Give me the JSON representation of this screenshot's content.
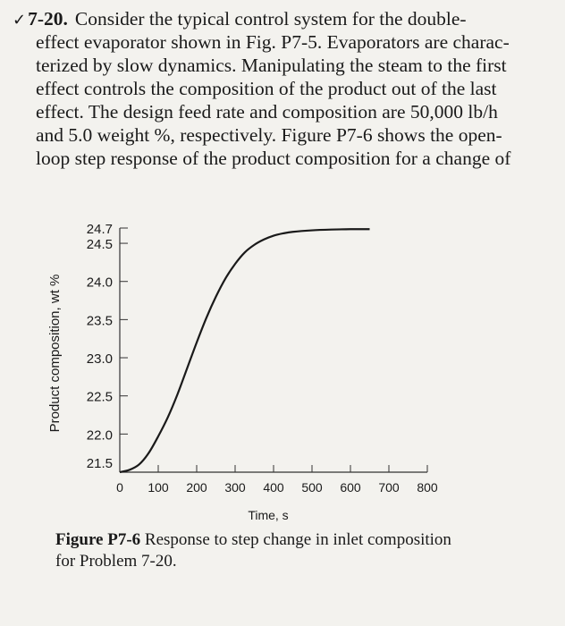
{
  "problem": {
    "check_mark": "✓",
    "number": "7-20.",
    "lines": [
      "Consider the typical control system for the double-",
      "effect evaporator shown in Fig. P7-5. Evaporators are charac-",
      "terized by slow dynamics. Manipulating the steam to the first",
      "effect controls the composition of the product out of the last",
      "effect. The design feed rate and composition are 50,000 lb/h",
      "and 5.0 weight %, respectively. Figure P7-6 shows the open-",
      "loop step response of the product composition for a change of"
    ]
  },
  "chart_data": {
    "type": "line",
    "title": "",
    "xlabel": "Time, s",
    "ylabel": "Product composition, wt %",
    "xlim": [
      0,
      800
    ],
    "ylim": [
      21.5,
      24.7
    ],
    "x_ticks": [
      "0",
      "100",
      "200",
      "300",
      "400",
      "500",
      "600",
      "700",
      "800"
    ],
    "y_ticks": [
      "21.5",
      "22.0",
      "22.5",
      "23.0",
      "23.5",
      "24.0",
      "24.5",
      "24.7"
    ],
    "series": [
      {
        "name": "Product composition",
        "x": [
          0,
          25,
          50,
          75,
          100,
          125,
          150,
          175,
          200,
          225,
          250,
          275,
          300,
          325,
          350,
          375,
          400,
          425,
          450,
          500,
          550,
          600,
          650
        ],
        "y": [
          21.5,
          21.53,
          21.6,
          21.75,
          21.97,
          22.22,
          22.52,
          22.86,
          23.2,
          23.52,
          23.8,
          24.04,
          24.23,
          24.38,
          24.48,
          24.55,
          24.6,
          24.63,
          24.65,
          24.67,
          24.68,
          24.685,
          24.685
        ]
      }
    ]
  },
  "caption": {
    "title": "Figure P7-6",
    "line1": "Response to step change in inlet composition",
    "line2": "for Problem 7-20."
  }
}
